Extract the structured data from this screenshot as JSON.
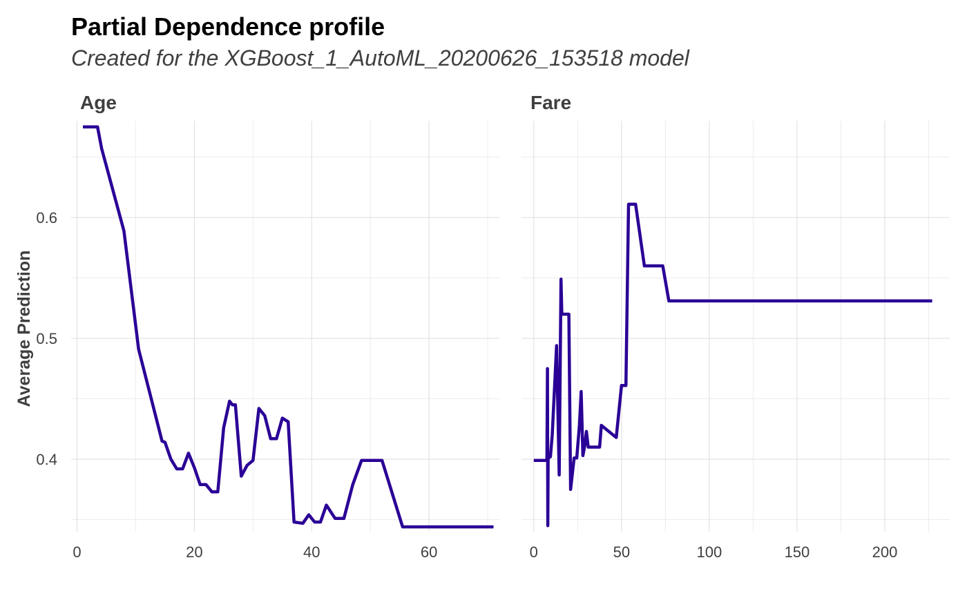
{
  "title": "Partial Dependence profile",
  "subtitle": "Created for the XGBoost_1_AutoML_20200626_153518 model",
  "colors": {
    "line": "#2a0096",
    "grid_major": "#dcdcdc",
    "grid_minor": "#ececec",
    "text": "#3f3f3f"
  },
  "chart_data": {
    "type": "line",
    "ylabel": "Average Prediction",
    "ylim": [
      0.34,
      0.68
    ],
    "yticks": [
      0.4,
      0.5,
      0.6
    ],
    "ytick_labels": [
      "0.4",
      "0.5",
      "0.6"
    ],
    "grid": true,
    "legend": "none",
    "panels": [
      {
        "title": "Age",
        "xlim": [
          -1,
          72
        ],
        "xticks": [
          0,
          20,
          40,
          60
        ],
        "xtick_labels": [
          "0",
          "20",
          "40",
          "60"
        ],
        "x": [
          1.0,
          3.5,
          4.2,
          8.0,
          10.5,
          14.5,
          15.0,
          16.0,
          17.0,
          18.0,
          19.0,
          20.0,
          21.0,
          22.0,
          23.0,
          24.0,
          25.0,
          26.0,
          26.5,
          27.0,
          28.0,
          29.0,
          30.0,
          31.0,
          32.0,
          33.0,
          34.0,
          35.0,
          36.0,
          37.0,
          38.5,
          39.5,
          40.5,
          41.5,
          42.5,
          44.0,
          45.5,
          47.0,
          48.5,
          50.0,
          52.0,
          55.5,
          71.0
        ],
        "values": [
          0.675,
          0.675,
          0.657,
          0.589,
          0.491,
          0.415,
          0.414,
          0.4,
          0.392,
          0.392,
          0.405,
          0.393,
          0.379,
          0.379,
          0.373,
          0.373,
          0.426,
          0.448,
          0.445,
          0.445,
          0.386,
          0.395,
          0.399,
          0.442,
          0.436,
          0.417,
          0.417,
          0.434,
          0.431,
          0.348,
          0.347,
          0.354,
          0.348,
          0.348,
          0.362,
          0.351,
          0.351,
          0.379,
          0.399,
          0.399,
          0.399,
          0.344,
          0.344
        ]
      },
      {
        "title": "Fare",
        "xlim": [
          -7,
          237
        ],
        "xticks": [
          0,
          50,
          100,
          150,
          200
        ],
        "xtick_labels": [
          "0",
          "50",
          "100",
          "150",
          "200"
        ],
        "x": [
          0.0,
          7.5,
          7.8,
          8.0,
          8.2,
          9.5,
          10.5,
          13.0,
          14.5,
          15.5,
          16.0,
          16.8,
          17.5,
          20.0,
          21.0,
          23.0,
          24.5,
          26.0,
          27.0,
          28.0,
          29.0,
          30.0,
          31.0,
          35.0,
          37.5,
          38.5,
          47.0,
          50.0,
          52.5,
          54.0,
          58.0,
          63.0,
          73.5,
          77.0,
          227.0
        ],
        "values": [
          0.399,
          0.399,
          0.475,
          0.345,
          0.401,
          0.402,
          0.42,
          0.494,
          0.387,
          0.549,
          0.52,
          0.52,
          0.52,
          0.52,
          0.375,
          0.401,
          0.401,
          0.428,
          0.456,
          0.403,
          0.411,
          0.423,
          0.41,
          0.41,
          0.41,
          0.428,
          0.418,
          0.461,
          0.461,
          0.611,
          0.611,
          0.56,
          0.56,
          0.531,
          0.531
        ]
      }
    ]
  }
}
